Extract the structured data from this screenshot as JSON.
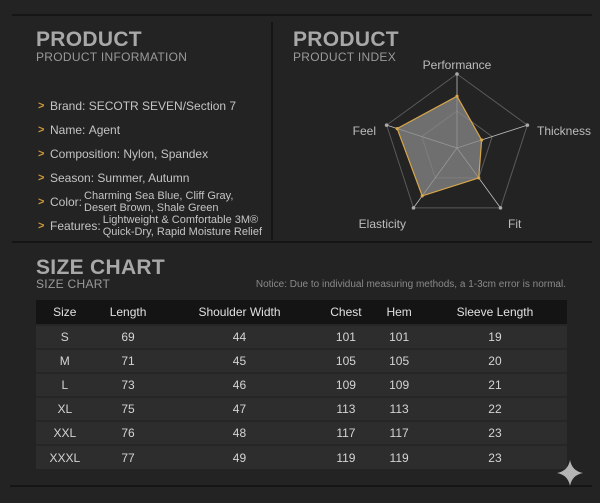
{
  "product_info": {
    "title": "PRODUCT",
    "subtitle": "PRODUCT INFORMATION",
    "items": [
      {
        "label": "Brand:",
        "value": "SECOTR SEVEN/Section 7"
      },
      {
        "label": "Name:",
        "value": "Agent"
      },
      {
        "label": "Composition:",
        "value": "Nylon, Spandex"
      },
      {
        "label": "Season:",
        "value": "Summer, Autumn"
      },
      {
        "label": "Color:",
        "value_lines": [
          "Charming Sea Blue, Cliff Gray,",
          "Desert Brown, Shale Green"
        ]
      },
      {
        "label": "Features:",
        "value_lines": [
          "Lightweight & Comfortable 3M®",
          "Quick-Dry, Rapid Moisture Relief"
        ]
      }
    ]
  },
  "product_index": {
    "title": "PRODUCT",
    "subtitle": "PRODUCT INDEX",
    "chart_data": {
      "type": "radar",
      "axes": [
        "Performance",
        "Thickness",
        "Fit",
        "Elasticity",
        "Feel"
      ],
      "values": [
        0.7,
        0.35,
        0.5,
        0.8,
        0.85
      ],
      "range": [
        0,
        1
      ],
      "fill_color": "#8a8a8a",
      "stroke_color": "#d6a64a"
    }
  },
  "size_chart": {
    "title": "SIZE CHART",
    "subtitle": "SIZE CHART",
    "notice": "Notice: Due to individual measuring methods, a 1-3cm error is normal.",
    "headers": [
      "Size",
      "Length",
      "Shoulder Width",
      "Chest",
      "Hem",
      "Sleeve Length"
    ],
    "rows": [
      [
        "S",
        "69",
        "44",
        "101",
        "101",
        "19"
      ],
      [
        "M",
        "71",
        "45",
        "105",
        "105",
        "20"
      ],
      [
        "L",
        "73",
        "46",
        "109",
        "109",
        "21"
      ],
      [
        "XL",
        "75",
        "47",
        "113",
        "113",
        "22"
      ],
      [
        "XXL",
        "76",
        "48",
        "117",
        "117",
        "23"
      ],
      [
        "XXXL",
        "77",
        "49",
        "119",
        "119",
        "23"
      ]
    ]
  },
  "icons": {
    "corner": "sparkle-icon"
  }
}
